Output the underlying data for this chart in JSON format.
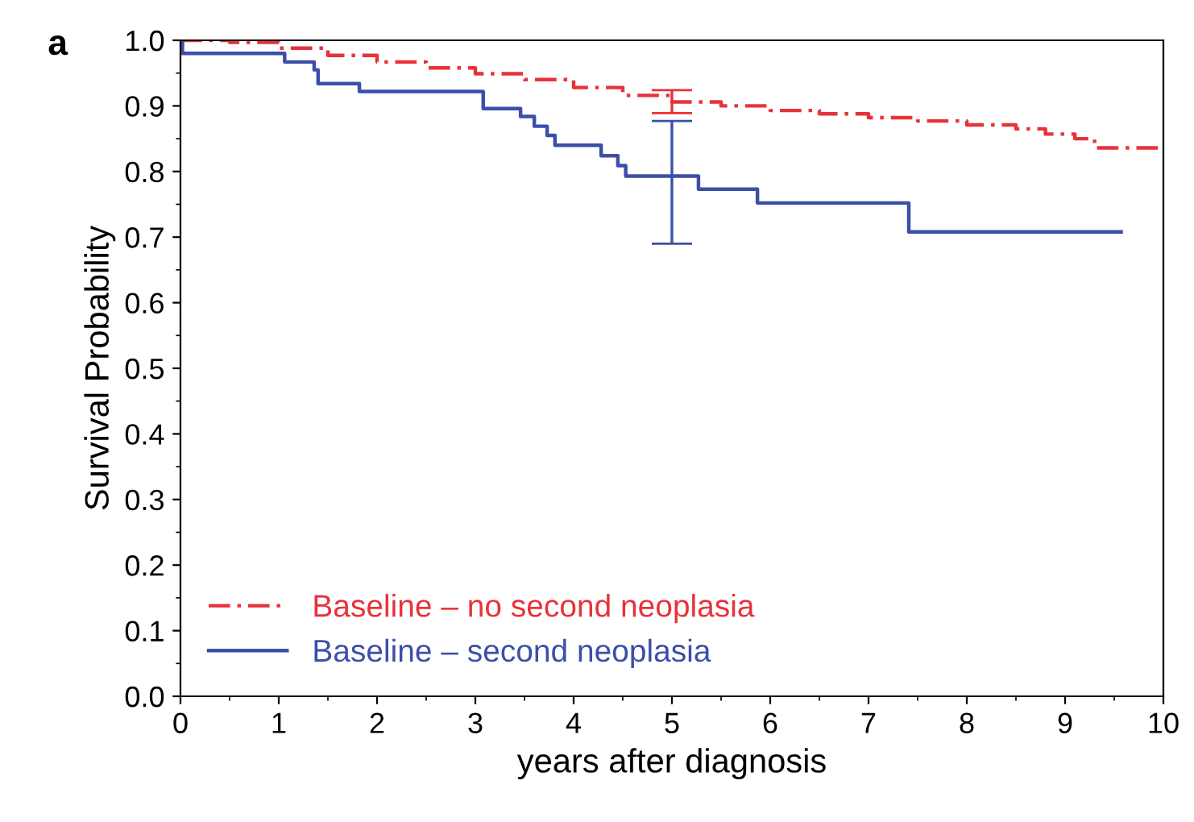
{
  "chart_data": {
    "type": "step",
    "title": "a",
    "xlabel": "years after diagnosis",
    "ylabel": "Survival Probability",
    "xlim": [
      0,
      10
    ],
    "xticks": [
      0,
      1,
      2,
      3,
      4,
      5,
      6,
      7,
      8,
      9,
      10
    ],
    "ylim": [
      0,
      1.0
    ],
    "yticks": [
      {
        "value": 0,
        "label": "0.0"
      },
      0.1,
      0.2,
      0.3,
      0.4,
      0.5,
      0.6,
      0.7,
      0.8,
      0.9,
      {
        "value": 1.0,
        "label": "1.0"
      }
    ],
    "grid": false,
    "legend": "bottom left",
    "series": [
      {
        "name": "Baseline – no second neoplasia",
        "color": "#e8323a",
        "line_style": "dashed",
        "x": [
          0,
          0.5,
          1.0,
          1.5,
          2.0,
          2.5,
          3.0,
          3.5,
          4.0,
          4.5,
          5.0,
          5.5,
          6.0,
          6.5,
          7.0,
          7.5,
          8.0,
          8.5,
          8.8,
          9.1,
          9.3,
          10.0
        ],
        "values": [
          1.0,
          0.997,
          0.988,
          0.977,
          0.967,
          0.958,
          0.949,
          0.94,
          0.928,
          0.916,
          0.906,
          0.9,
          0.893,
          0.888,
          0.882,
          0.877,
          0.871,
          0.865,
          0.857,
          0.85,
          0.836,
          0.836
        ],
        "errors": [
          null,
          null,
          null,
          null,
          null,
          null,
          null,
          null,
          null,
          null,
          [
            0.889,
            0.924
          ],
          null,
          null,
          null,
          null,
          null,
          null,
          null,
          null,
          null,
          null,
          null
        ]
      },
      {
        "name": "Baseline – second neoplasia",
        "color": "#3b4fa8",
        "line_style": "solid",
        "x": [
          0,
          0.02,
          1.06,
          1.36,
          1.4,
          1.82,
          3.08,
          3.46,
          3.6,
          3.73,
          3.81,
          4.28,
          4.45,
          4.53,
          5.0,
          5.27,
          5.87,
          7.41,
          9.57
        ],
        "values": [
          1.0,
          0.98,
          0.967,
          0.955,
          0.934,
          0.922,
          0.896,
          0.884,
          0.869,
          0.855,
          0.84,
          0.824,
          0.809,
          0.793,
          0.793,
          0.773,
          0.752,
          0.708,
          0.708
        ],
        "errors": [
          null,
          null,
          null,
          null,
          null,
          null,
          null,
          null,
          null,
          null,
          null,
          null,
          null,
          null,
          [
            0.69,
            0.877
          ],
          null,
          null,
          null,
          null
        ]
      }
    ]
  }
}
